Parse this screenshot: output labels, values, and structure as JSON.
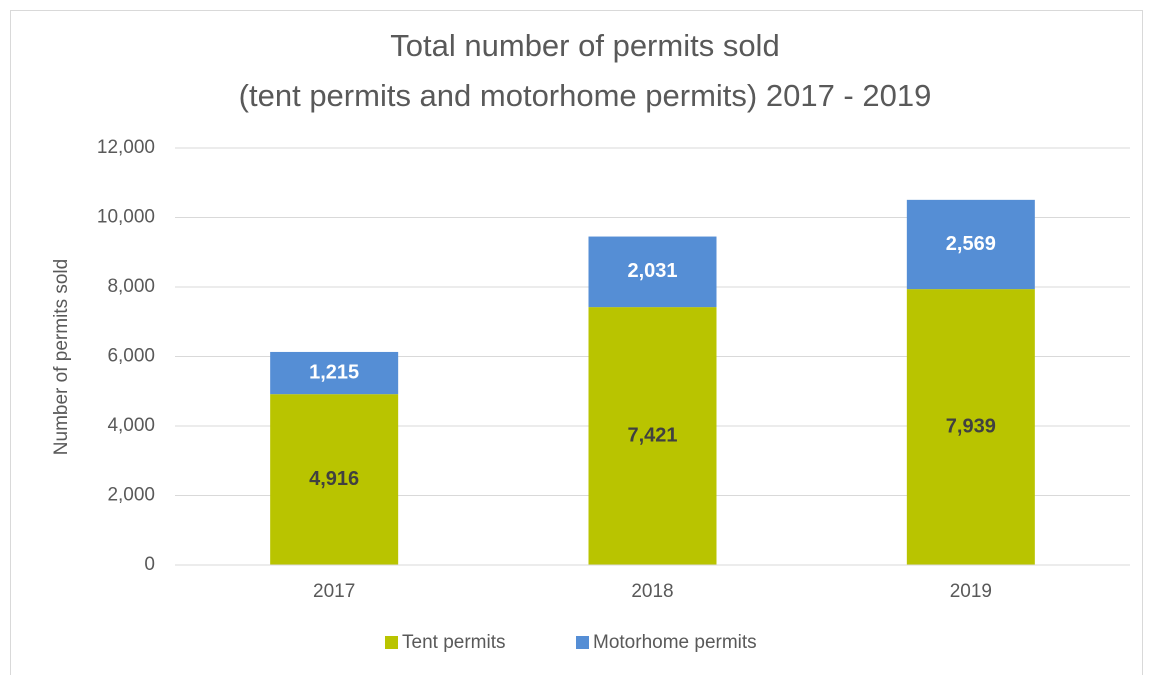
{
  "chart_data": {
    "type": "stacked_bar",
    "title": [
      "Total number of permits sold",
      "(tent permits and motorhome permits) 2017 - 2019"
    ],
    "y_label": "Number of permits sold",
    "categories": [
      "2017",
      "2018",
      "2019"
    ],
    "series": [
      {
        "name": "Tent permits",
        "color": "#b9c400",
        "label_color": "#404040",
        "values": [
          4916,
          7421,
          7939
        ],
        "value_labels": [
          "4,916",
          "7,421",
          "7,939"
        ]
      },
      {
        "name": "Motorhome permits",
        "color": "#558ed5",
        "label_color": "#ffffff",
        "values": [
          1215,
          2031,
          2569
        ],
        "value_labels": [
          "1,215",
          "2,031",
          "2,569"
        ]
      }
    ],
    "ylim": [
      0,
      12000
    ],
    "yticks": [
      0,
      {
        "value": 2000,
        "label": "2,000"
      },
      {
        "value": 4000,
        "label": "4,000"
      },
      {
        "value": 6000,
        "label": "6,000"
      },
      {
        "value": 8000,
        "label": "8,000"
      },
      {
        "value": 10000,
        "label": "10,000"
      },
      {
        "value": 12000,
        "label": "12,000"
      }
    ],
    "grid": true,
    "legend": "bottom"
  }
}
